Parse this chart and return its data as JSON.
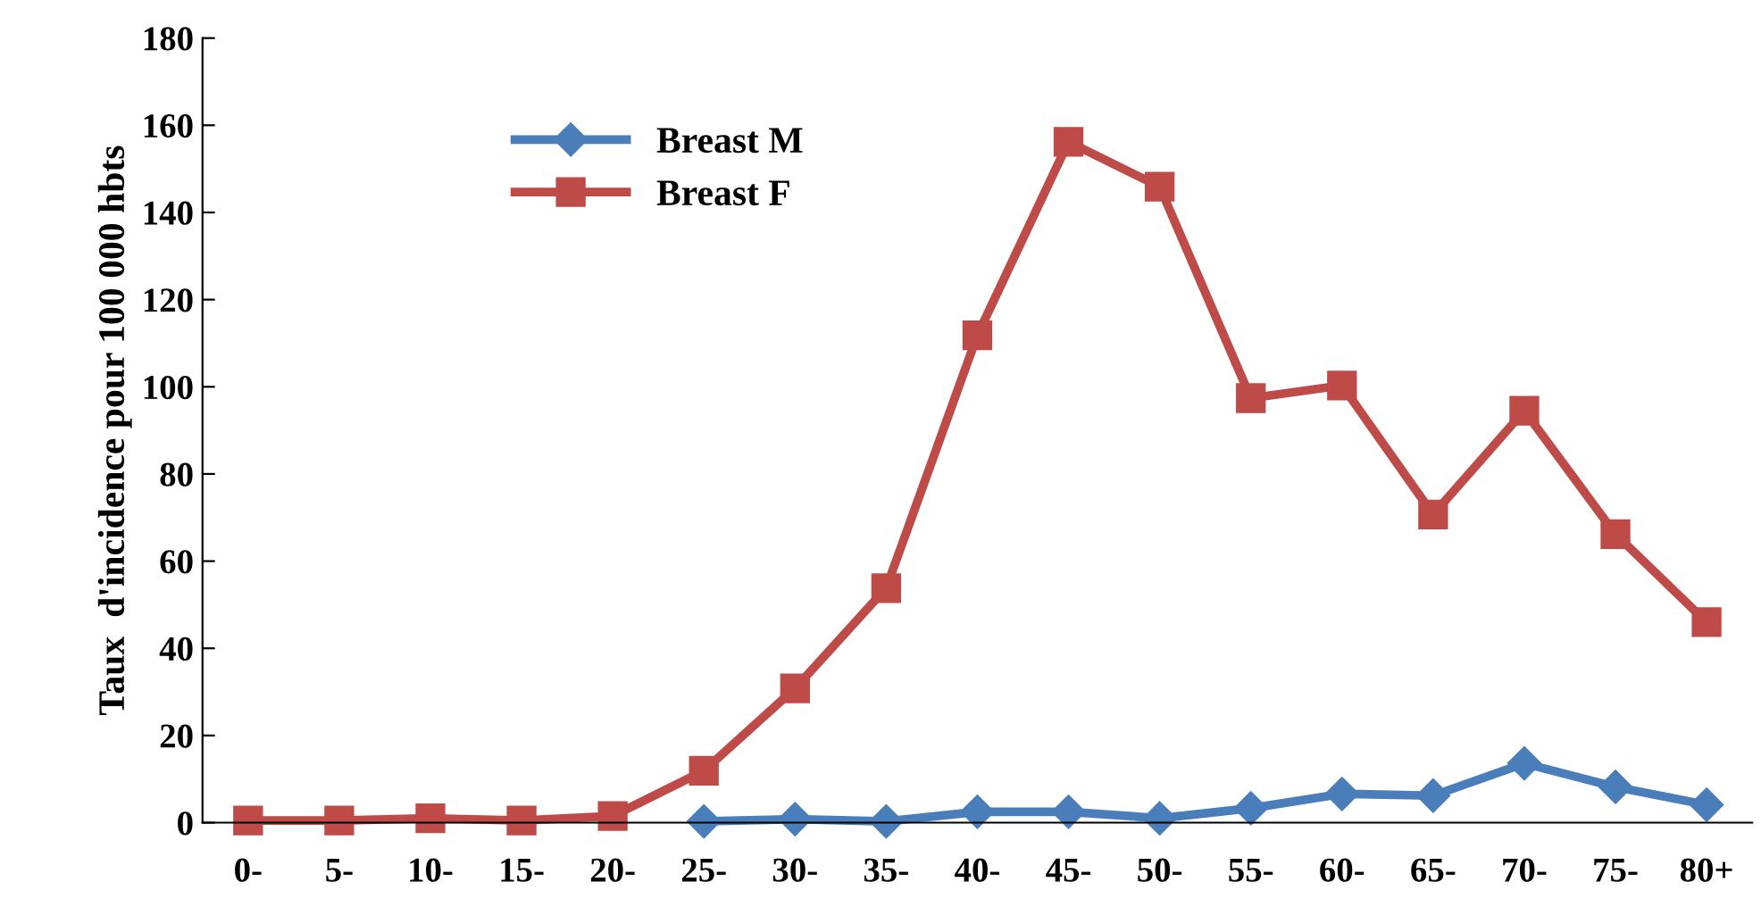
{
  "chart_data": {
    "type": "line",
    "ylabel": "Taux  d'incidence pour 100 000 hbts",
    "categories": [
      "0-",
      "5-",
      "10-",
      "15-",
      "20-",
      "25-",
      "30-",
      "35-",
      "40-",
      "45-",
      "50-",
      "55-",
      "60-",
      "65-",
      "70-",
      "75-",
      "80+"
    ],
    "series": [
      {
        "name": "Breast M",
        "color": "#4a7ebb",
        "marker": "diamond",
        "values": [
          null,
          null,
          null,
          null,
          null,
          0.3,
          0.8,
          0.3,
          2.5,
          2.5,
          1,
          3.3,
          6.6,
          6.2,
          13.6,
          8.2,
          4.1
        ]
      },
      {
        "name": "Breast F",
        "color": "#be4b48",
        "marker": "square",
        "values": [
          0.5,
          0.5,
          1,
          0.5,
          1.5,
          11.9,
          30.8,
          53.8,
          111.8,
          156.2,
          145.9,
          97.4,
          100.3,
          70.7,
          94.5,
          66.2,
          46
        ]
      }
    ],
    "ylim": [
      0,
      180
    ],
    "yticks": [
      0,
      20,
      40,
      60,
      80,
      100,
      120,
      140,
      160,
      180
    ],
    "grid": false,
    "legend": "top left",
    "line_style": "solid"
  }
}
